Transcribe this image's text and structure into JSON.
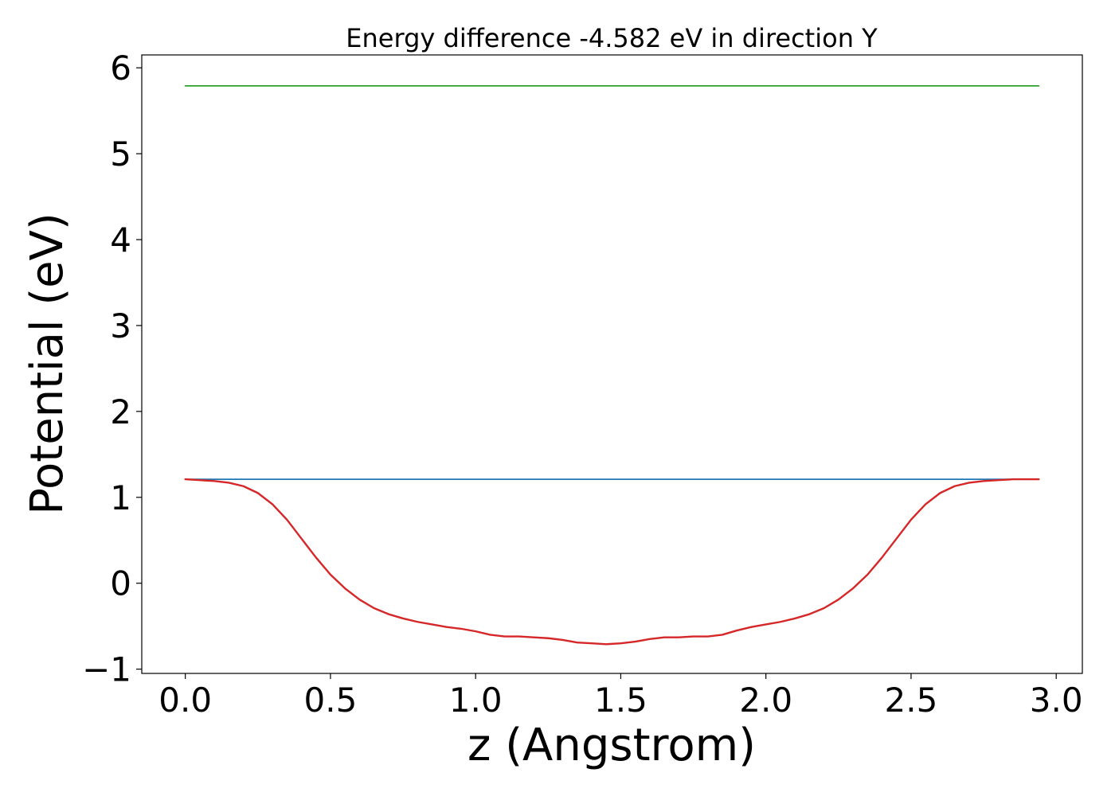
{
  "chart_data": {
    "type": "line",
    "title": "Energy difference -4.582 eV in direction Y",
    "xlabel": "z (Angstrom)",
    "ylabel": "Potential (eV)",
    "xlim": [
      -0.15,
      3.09
    ],
    "ylim": [
      -1.05,
      6.15
    ],
    "xticks": [
      0.0,
      0.5,
      1.0,
      1.5,
      2.0,
      2.5,
      3.0
    ],
    "xtick_labels": [
      "0.0",
      "0.5",
      "1.0",
      "1.5",
      "2.0",
      "2.5",
      "3.0"
    ],
    "yticks": [
      -1,
      0,
      1,
      2,
      3,
      4,
      5,
      6
    ],
    "ytick_labels": [
      "−1",
      "0",
      "1",
      "2",
      "3",
      "4",
      "5",
      "6"
    ],
    "grid": false,
    "series": [
      {
        "color": "#2ca02c",
        "x": [
          0.0,
          2.94
        ],
        "y": [
          5.79,
          5.79
        ]
      },
      {
        "color": "#1f77b4",
        "x": [
          0.0,
          2.94
        ],
        "y": [
          1.21,
          1.21
        ]
      },
      {
        "color": "#d62728",
        "x": [
          0.0,
          0.05,
          0.1,
          0.15,
          0.2,
          0.25,
          0.3,
          0.35,
          0.4,
          0.45,
          0.5,
          0.55,
          0.6,
          0.65,
          0.7,
          0.75,
          0.8,
          0.85,
          0.9,
          0.95,
          1.0,
          1.05,
          1.1,
          1.15,
          1.2,
          1.25,
          1.3,
          1.35,
          1.4,
          1.45,
          1.5,
          1.55,
          1.6,
          1.65,
          1.7,
          1.75,
          1.8,
          1.85,
          1.9,
          1.95,
          2.0,
          2.05,
          2.1,
          2.15,
          2.2,
          2.25,
          2.3,
          2.35,
          2.4,
          2.45,
          2.5,
          2.55,
          2.6,
          2.65,
          2.7,
          2.75,
          2.8,
          2.85,
          2.9,
          2.94
        ],
        "y": [
          1.21,
          1.2,
          1.19,
          1.17,
          1.13,
          1.05,
          0.92,
          0.74,
          0.52,
          0.3,
          0.1,
          -0.06,
          -0.19,
          -0.29,
          -0.36,
          -0.41,
          -0.45,
          -0.48,
          -0.51,
          -0.53,
          -0.56,
          -0.6,
          -0.62,
          -0.62,
          -0.63,
          -0.64,
          -0.66,
          -0.69,
          -0.7,
          -0.71,
          -0.7,
          -0.68,
          -0.65,
          -0.63,
          -0.63,
          -0.62,
          -0.62,
          -0.6,
          -0.55,
          -0.51,
          -0.48,
          -0.45,
          -0.41,
          -0.36,
          -0.29,
          -0.19,
          -0.06,
          0.1,
          0.3,
          0.52,
          0.74,
          0.92,
          1.05,
          1.13,
          1.17,
          1.19,
          1.2,
          1.21,
          1.21,
          1.21
        ]
      }
    ]
  }
}
